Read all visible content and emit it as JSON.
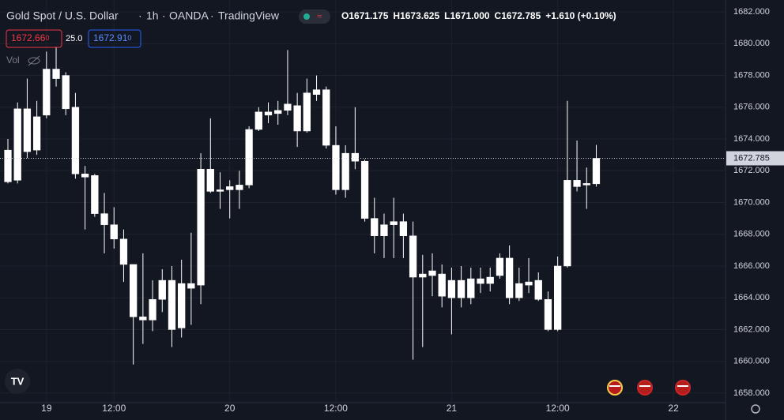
{
  "header": {
    "title": "Gold Spot / U.S. Dollar",
    "interval": "1h",
    "exchange": "OANDA",
    "source": "TradingView",
    "ohlc": [
      {
        "key": "O",
        "value": "1671.175"
      },
      {
        "key": "H",
        "value": "1673.625"
      },
      {
        "key": "L",
        "value": "1671.000"
      },
      {
        "key": "C",
        "value": "1672.785"
      }
    ],
    "change": "+1.610 (+0.10%)",
    "sell": {
      "price": "1672.66",
      "pip": "0"
    },
    "spread": "25.0",
    "buy": {
      "price": "1672.91",
      "pip": "0"
    },
    "volume": "Vol"
  },
  "chart_data": {
    "type": "candlestick",
    "open": [
      1671.3,
      1671.4,
      1675.9,
      1673.3,
      1675.5,
      1678.4,
      1678.0,
      1676.0,
      1671.8,
      1671.7,
      1669.3,
      1668.6,
      1667.7,
      1666.1,
      1662.8,
      1662.6,
      1663.9,
      1665.1,
      1662.1,
      1664.9,
      1664.8,
      1672.1,
      1670.7,
      1670.8,
      1670.8,
      1671.1,
      1674.6,
      1675.7,
      1675.6,
      1675.8,
      1676.1,
      1674.5,
      1676.8,
      1677.1,
      1673.6,
      1670.8,
      1673.1,
      1672.6,
      1669.0,
      1667.9,
      1668.6,
      1668.8,
      1667.9,
      1665.3,
      1665.4,
      1665.5,
      1664.0,
      1665.1,
      1664.0,
      1664.9,
      1664.9,
      1665.4,
      1666.5,
      1664.0,
      1664.8,
      1665.1,
      1663.9,
      1662.0,
      1666.0,
      1671.4,
      1671.1,
      1671.175
    ],
    "high": [
      1674.0,
      1676.3,
      1677.8,
      1676.4,
      1679.5,
      1679.8,
      1678.2,
      1676.9,
      1672.3,
      1671.8,
      1670.6,
      1669.7,
      1668.3,
      1666.1,
      1666.8,
      1665.1,
      1665.8,
      1666.0,
      1666.4,
      1668.1,
      1673.1,
      1675.3,
      1671.9,
      1671.4,
      1672.0,
      1674.8,
      1676.0,
      1676.3,
      1676.4,
      1679.6,
      1676.9,
      1677.8,
      1678.0,
      1677.3,
      1674.8,
      1673.6,
      1676.0,
      1672.7,
      1670.3,
      1669.3,
      1670.3,
      1669.3,
      1668.8,
      1666.7,
      1666.8,
      1666.1,
      1665.9,
      1666.0,
      1665.9,
      1665.9,
      1665.9,
      1666.8,
      1667.3,
      1665.9,
      1666.5,
      1665.6,
      1664.4,
      1666.6,
      1676.4,
      1673.9,
      1672.2,
      1673.625
    ],
    "low": [
      1671.2,
      1671.2,
      1672.8,
      1673.0,
      1675.3,
      1677.3,
      1675.5,
      1671.5,
      1668.3,
      1669.1,
      1666.8,
      1667.1,
      1665.0,
      1659.8,
      1661.1,
      1661.9,
      1663.1,
      1660.9,
      1661.5,
      1662.3,
      1663.6,
      1670.6,
      1669.6,
      1669.0,
      1669.6,
      1670.9,
      1674.5,
      1675.0,
      1674.9,
      1675.5,
      1673.5,
      1674.4,
      1676.4,
      1673.4,
      1670.5,
      1670.3,
      1672.1,
      1668.8,
      1666.8,
      1666.5,
      1666.5,
      1666.5,
      1660.1,
      1660.9,
      1664.1,
      1663.4,
      1661.7,
      1663.4,
      1663.6,
      1664.3,
      1664.4,
      1665.2,
      1663.6,
      1663.8,
      1664.3,
      1663.8,
      1661.9,
      1661.9,
      1665.9,
      1670.7,
      1669.6,
      1671.0
    ],
    "close": [
      1673.3,
      1675.9,
      1673.2,
      1675.4,
      1678.4,
      1677.8,
      1675.9,
      1671.8,
      1671.6,
      1669.3,
      1668.6,
      1667.7,
      1666.1,
      1662.8,
      1662.6,
      1663.9,
      1665.1,
      1662.0,
      1664.9,
      1664.6,
      1672.1,
      1670.7,
      1670.8,
      1671.0,
      1671.1,
      1674.6,
      1675.7,
      1675.5,
      1675.8,
      1676.2,
      1674.5,
      1676.9,
      1677.1,
      1673.6,
      1670.8,
      1673.1,
      1672.6,
      1669.0,
      1667.9,
      1668.6,
      1668.8,
      1667.9,
      1665.3,
      1665.5,
      1665.7,
      1664.1,
      1665.1,
      1664.0,
      1665.2,
      1665.2,
      1665.3,
      1666.5,
      1664.0,
      1664.9,
      1665.0,
      1663.9,
      1662.0,
      1666.0,
      1671.4,
      1671.0,
      1671.2,
      1672.785
    ],
    "color": "#ffffff",
    "xlim": [
      -0.82,
      74.4
    ],
    "xticks": [
      {
        "value": 4,
        "label": "19"
      },
      {
        "value": 11,
        "label": "12:00"
      },
      {
        "value": 23,
        "label": "20"
      },
      {
        "value": 34,
        "label": "12:00"
      },
      {
        "value": 46,
        "label": "21"
      },
      {
        "value": 57,
        "label": "12:00"
      },
      {
        "value": 69,
        "label": "22"
      }
    ],
    "ylim": [
      1657.4,
      1682.75
    ],
    "yticks": [
      {
        "value": 1658,
        "label": "1658.000"
      },
      {
        "value": 1660,
        "label": "1660.000"
      },
      {
        "value": 1662,
        "label": "1662.000"
      },
      {
        "value": 1664,
        "label": "1664.000"
      },
      {
        "value": 1666,
        "label": "1666.000"
      },
      {
        "value": 1668,
        "label": "1668.000"
      },
      {
        "value": 1670,
        "label": "1670.000"
      },
      {
        "value": 1672,
        "label": "1672.000"
      },
      {
        "value": 1674,
        "label": "1674.000"
      },
      {
        "value": 1676,
        "label": "1676.000"
      },
      {
        "value": 1678,
        "label": "1678.000"
      },
      {
        "value": 1680,
        "label": "1680.000"
      },
      {
        "value": 1682,
        "label": "1682.000"
      }
    ],
    "grid": true
  }
}
